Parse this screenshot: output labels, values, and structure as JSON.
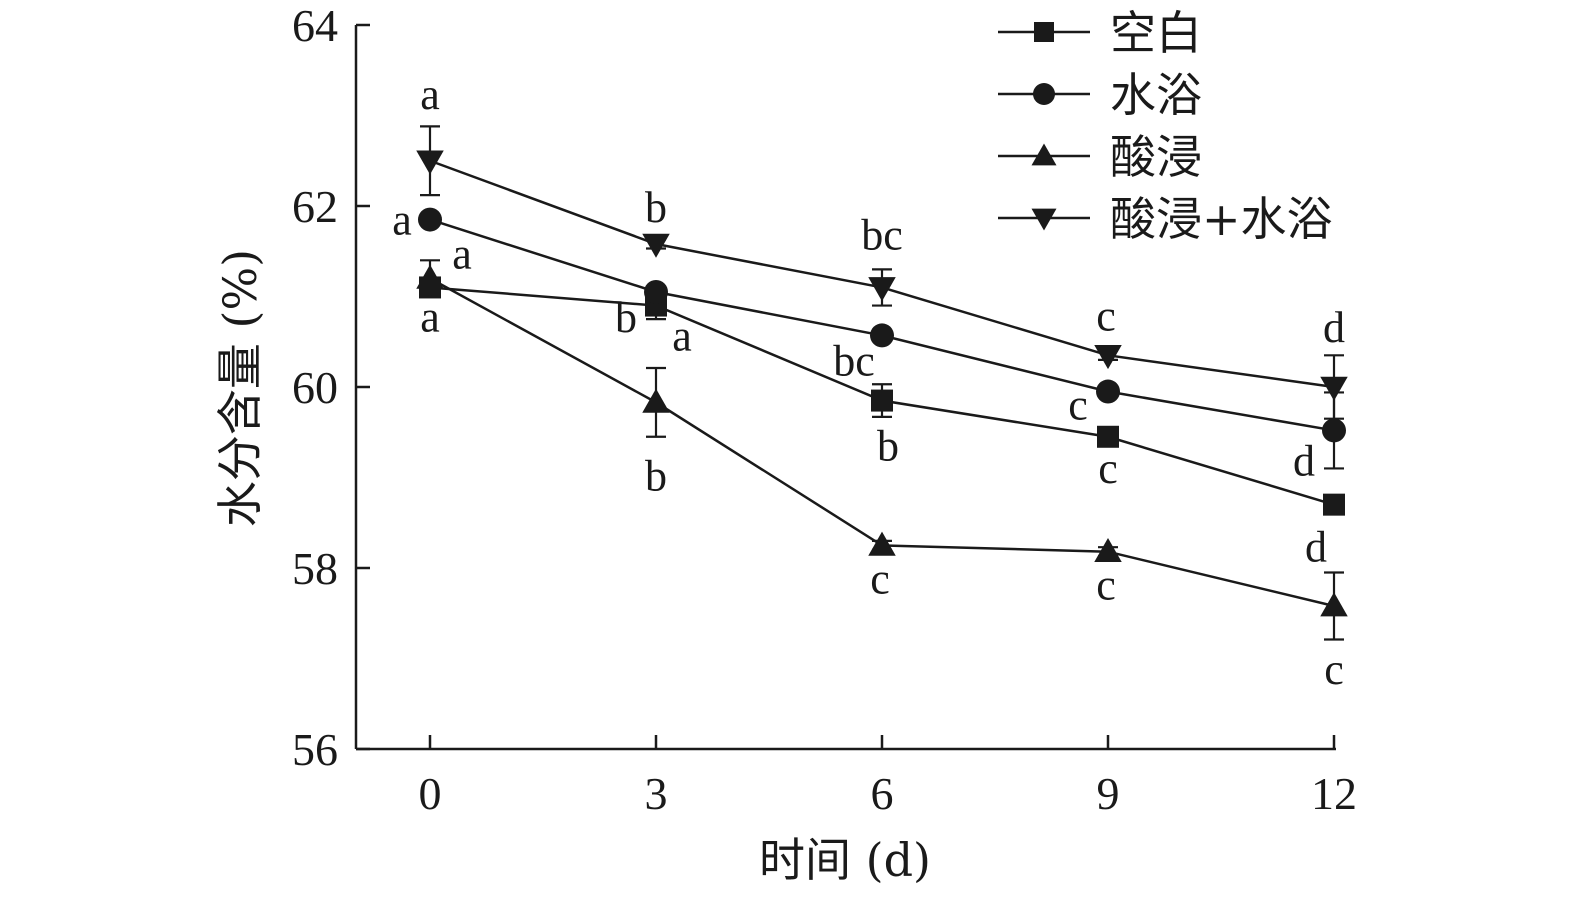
{
  "chart_data": {
    "type": "line",
    "xlabel": "时间 (d)",
    "ylabel": "水分含量 (%)",
    "x": [
      0,
      3,
      6,
      9,
      12
    ],
    "xticks": [
      "0",
      "3",
      "6",
      "9",
      "12"
    ],
    "yticks": [
      "56",
      "58",
      "60",
      "62",
      "64"
    ],
    "ylim": [
      56,
      64
    ],
    "xlim": [
      -1,
      12
    ],
    "grid": false,
    "legend_position": "top-right",
    "series": [
      {
        "name": "空白",
        "marker": "square",
        "values": [
          61.1,
          60.9,
          59.85,
          59.45,
          58.7
        ],
        "errors": [
          0.1,
          0.15,
          0.18,
          0.05,
          0.05
        ],
        "labels": [
          "a",
          "a",
          "b",
          "c",
          "d"
        ]
      },
      {
        "name": "水浴",
        "marker": "circle",
        "values": [
          61.85,
          61.05,
          60.57,
          59.95,
          59.52
        ],
        "errors": [
          0.05,
          0.05,
          0.05,
          0.05,
          0.42
        ],
        "labels": [
          "a",
          "b",
          "bc",
          "c",
          "d"
        ]
      },
      {
        "name": "酸浸",
        "marker": "triangle-up",
        "values": [
          61.2,
          59.83,
          58.25,
          58.18,
          57.58
        ],
        "errors": [
          0.2,
          0.38,
          0.05,
          0.05,
          0.37
        ],
        "labels": [
          "a",
          "b",
          "c",
          "c",
          "c"
        ]
      },
      {
        "name": "酸浸+水浴",
        "marker": "triangle-down",
        "values": [
          62.5,
          61.58,
          61.1,
          60.35,
          60.0
        ],
        "errors": [
          0.38,
          0.05,
          0.2,
          0.05,
          0.35
        ],
        "labels": [
          "a",
          "b",
          "bc",
          "c",
          "d"
        ]
      }
    ]
  }
}
